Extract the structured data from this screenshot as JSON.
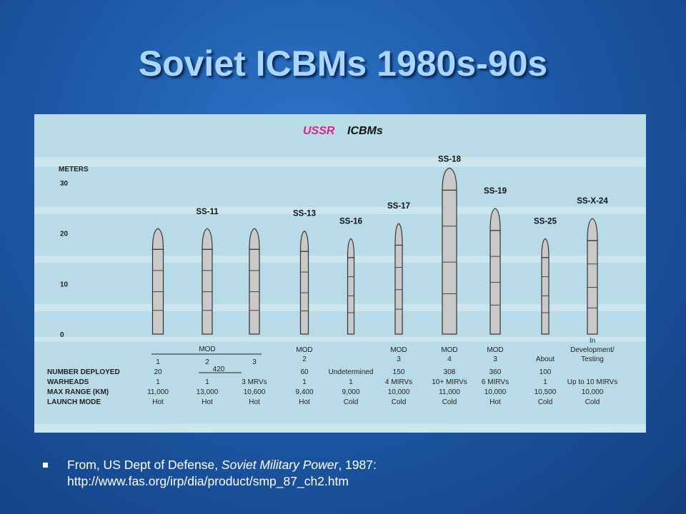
{
  "slide": {
    "title": "Soviet ICBMs 1980s-90s",
    "source_prefix": "From, US Dept of Defense, ",
    "source_italic": "Soviet Military Power",
    "source_suffix": ", 1987:",
    "source_url": "http://www.fas.org/irp/dia/product/smp_87_ch2.htm"
  },
  "colors": {
    "slide_bg": "#1d5aa8",
    "title": "#a9d6ff",
    "figure_bg": "#b9dbe8",
    "band": "#cfe7f0",
    "missile": "#c9c9c9",
    "figure_title_ussr": "#e0218a"
  },
  "chart_data": {
    "type": "bar",
    "title_part1": "USSR",
    "title_part2": "ICBMs",
    "ylabel": "METERS",
    "ylim": [
      0,
      30
    ],
    "yticks": [
      "0",
      "10",
      "20",
      "30"
    ],
    "mod_header": "MOD",
    "ss11_total": "420",
    "row_labels": [
      "NUMBER DEPLOYED",
      "WARHEADS",
      "MAX RANGE (KM)",
      "LAUNCH MODE"
    ],
    "missiles": [
      {
        "name": "",
        "group_label": "",
        "mod": "1",
        "deployed": "20",
        "warheads": "1",
        "range": "11,000",
        "mode": "Hot",
        "height": 20.5
      },
      {
        "name": "SS-11",
        "group_label": "SS-11",
        "mod": "2",
        "deployed": "",
        "warheads": "1",
        "range": "13,000",
        "mode": "Hot",
        "height": 20.5
      },
      {
        "name": "",
        "group_label": "",
        "mod": "3",
        "deployed": "",
        "warheads": "3 MRVs",
        "range": "10,600",
        "mode": "Hot",
        "height": 20.5
      },
      {
        "name": "SS-13",
        "group_label": "SS-13",
        "mod": "MOD\n2",
        "deployed": "60",
        "warheads": "1",
        "range": "9,400",
        "mode": "Hot",
        "height": 20
      },
      {
        "name": "SS-16",
        "group_label": "SS-16",
        "mod": "",
        "deployed": "Undetermined",
        "warheads": "1",
        "range": "9,000",
        "mode": "Cold",
        "height": 18.5
      },
      {
        "name": "SS-17",
        "group_label": "SS-17",
        "mod": "MOD\n3",
        "deployed": "150",
        "warheads": "4 MIRVs",
        "range": "10,000",
        "mode": "Cold",
        "height": 21.5
      },
      {
        "name": "SS-18",
        "group_label": "SS-18",
        "mod": "MOD\n4",
        "deployed": "308",
        "warheads": "10+ MIRVs",
        "range": "11,000",
        "mode": "Cold",
        "height": 32.5
      },
      {
        "name": "SS-19",
        "group_label": "SS-19",
        "mod": "MOD\n3",
        "deployed": "360",
        "warheads": "6 MIRVs",
        "range": "10,000",
        "mode": "Hot",
        "height": 24.5
      },
      {
        "name": "SS-25",
        "group_label": "SS-25",
        "mod": "About",
        "deployed": "100",
        "warheads": "1",
        "range": "10,500",
        "mode": "Cold",
        "height": 18.5
      },
      {
        "name": "SS-X-24",
        "group_label": "SS-X-24",
        "mod": "In\nDevelopment/\nTesting",
        "deployed": "",
        "warheads": "Up to 10 MIRVs",
        "range": "10,000",
        "mode": "Cold",
        "height": 22.5
      }
    ]
  }
}
